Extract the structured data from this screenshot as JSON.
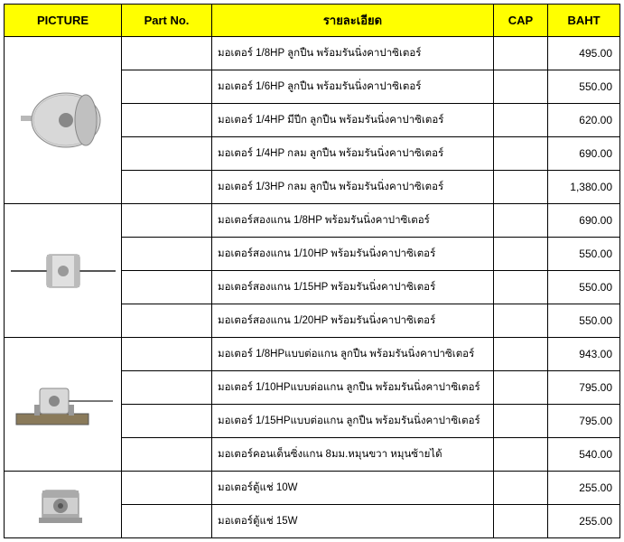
{
  "headers": {
    "picture": "PICTURE",
    "partno": "Part No.",
    "desc": "รายละเอียด",
    "cap": "CAP",
    "baht": "BAHT"
  },
  "colors": {
    "header_bg": "#ffff00",
    "border": "#000000",
    "text": "#000000",
    "background": "#ffffff"
  },
  "rows": [
    {
      "desc": "มอเตอร์ 1/8HP ลูกปืน พร้อมรันนิ่งคาปาซิเตอร์",
      "partno": "",
      "cap": "",
      "baht": "495.00"
    },
    {
      "desc": "มอเตอร์ 1/6HP ลูกปืน พร้อมรันนิ่งคาปาซิเตอร์",
      "partno": "",
      "cap": "",
      "baht": "550.00"
    },
    {
      "desc": "มอเตอร์ 1/4HP มีปีก ลูกปืน พร้อมรันนิ่งคาปาซิเตอร์",
      "partno": "",
      "cap": "",
      "baht": "620.00"
    },
    {
      "desc": "มอเตอร์ 1/4HP กลม  ลูกปืน พร้อมรันนิ่งคาปาซิเตอร์",
      "partno": "",
      "cap": "",
      "baht": "690.00"
    },
    {
      "desc": "มอเตอร์ 1/3HP กลม ลูกปืน พร้อมรันนิ่งคาปาซิเตอร์",
      "partno": "",
      "cap": "",
      "baht": "1,380.00"
    },
    {
      "desc": "มอเตอร์สองแกน 1/8HP  พร้อมรันนิ่งคาปาซิเตอร์",
      "partno": "",
      "cap": "",
      "baht": "690.00"
    },
    {
      "desc": "มอเตอร์สองแกน 1/10HP  พร้อมรันนิ่งคาปาซิเตอร์",
      "partno": "",
      "cap": "",
      "baht": "550.00"
    },
    {
      "desc": "มอเตอร์สองแกน 1/15HP  พร้อมรันนิ่งคาปาซิเตอร์",
      "partno": "",
      "cap": "",
      "baht": "550.00"
    },
    {
      "desc": "มอเตอร์สองแกน 1/20HP  พร้อมรันนิ่งคาปาซิเตอร์",
      "partno": "",
      "cap": "",
      "baht": "550.00"
    },
    {
      "desc": "มอเตอร์ 1/8HPแบบต่อแกน  ลูกปืน พร้อมรันนิ่งคาปาซิเตอร์",
      "partno": "",
      "cap": "",
      "baht": "943.00"
    },
    {
      "desc": "มอเตอร์ 1/10HPแบบต่อแกน  ลูกปืน พร้อมรันนิ่งคาปาซิเตอร์",
      "partno": "",
      "cap": "",
      "baht": "795.00"
    },
    {
      "desc": "มอเตอร์ 1/15HPแบบต่อแกน  ลูกปืน พร้อมรันนิ่งคาปาซิเตอร์",
      "partno": "",
      "cap": "",
      "baht": "795.00"
    },
    {
      "desc": "มอเตอร์คอนเด็นซิ่งแกน 8มม.หมุนขวา หมุนซ้ายได้",
      "partno": "",
      "cap": "",
      "baht": "540.00"
    },
    {
      "desc": "มอเตอร์ตู้แช่ 10W",
      "partno": "",
      "cap": "",
      "baht": "255.00"
    },
    {
      "desc": "มอเตอร์ตู้แช่ 15W",
      "partno": "",
      "cap": "",
      "baht": "255.00"
    }
  ],
  "picture_groups": [
    {
      "rowspan": 5,
      "icon": "motor-round"
    },
    {
      "rowspan": 4,
      "icon": "motor-twinshaft"
    },
    {
      "rowspan": 4,
      "icon": "motor-mount"
    },
    {
      "rowspan": 2,
      "icon": "motor-small"
    }
  ]
}
